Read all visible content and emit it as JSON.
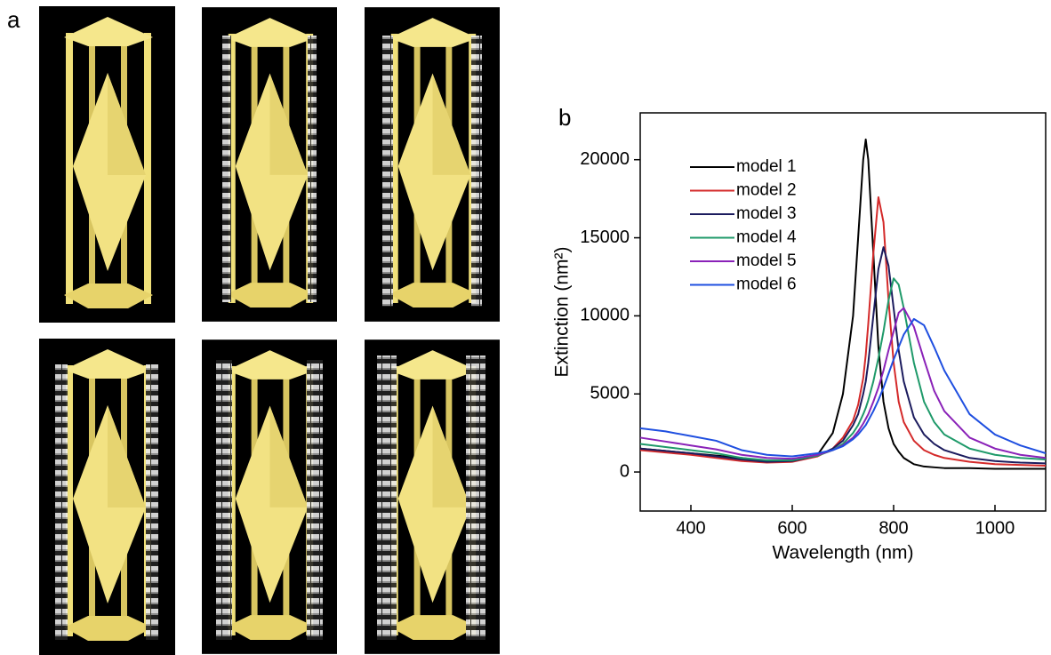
{
  "panel_a": {
    "label": "a"
  },
  "chart_data": {
    "type": "line",
    "panel_label": "b",
    "x_label": "Wavelength (nm)",
    "y_label": "Extinction (nm²)",
    "xlim": [
      300,
      1100
    ],
    "ylim": [
      -2500,
      23000
    ],
    "xticks": [
      400,
      600,
      800,
      1000
    ],
    "yticks": [
      0,
      5000,
      10000,
      15000,
      20000
    ],
    "legend": "upper left",
    "grid": false,
    "x": [
      300,
      350,
      400,
      450,
      500,
      550,
      600,
      650,
      680,
      700,
      720,
      730,
      740,
      745,
      750,
      760,
      770,
      780,
      790,
      800,
      810,
      820,
      840,
      860,
      880,
      900,
      950,
      1000,
      1050,
      1100
    ],
    "series": [
      {
        "name": "model 1",
        "color": "#000000",
        "values": [
          1500,
          1350,
          1200,
          1050,
          900,
          700,
          700,
          1100,
          2500,
          5000,
          10000,
          15000,
          20000,
          21300,
          20000,
          14000,
          8000,
          4500,
          2800,
          1800,
          1300,
          900,
          500,
          350,
          300,
          250,
          250,
          200,
          200,
          200
        ]
      },
      {
        "name": "model 2",
        "color": "#d42a2a",
        "values": [
          1400,
          1250,
          1100,
          900,
          700,
          600,
          650,
          1000,
          1500,
          2200,
          3300,
          4300,
          6000,
          7500,
          9500,
          14000,
          17600,
          16000,
          11000,
          7000,
          4500,
          3200,
          2000,
          1400,
          1100,
          900,
          650,
          500,
          450,
          400
        ]
      },
      {
        "name": "model 3",
        "color": "#1c1c5e",
        "values": [
          1500,
          1350,
          1200,
          1000,
          800,
          650,
          700,
          1050,
          1500,
          2000,
          3000,
          3700,
          5000,
          5800,
          7000,
          10000,
          13000,
          14400,
          13200,
          10500,
          7800,
          5800,
          3500,
          2400,
          1800,
          1400,
          900,
          700,
          600,
          550
        ]
      },
      {
        "name": "model 4",
        "color": "#1f9a6a",
        "values": [
          1800,
          1600,
          1400,
          1200,
          900,
          750,
          750,
          1050,
          1400,
          1800,
          2500,
          3000,
          3700,
          4100,
          4600,
          5800,
          7300,
          9000,
          11000,
          12400,
          12000,
          10500,
          7000,
          4500,
          3200,
          2400,
          1500,
          1100,
          900,
          800
        ]
      },
      {
        "name": "model 5",
        "color": "#8a22b8",
        "values": [
          2200,
          1950,
          1700,
          1450,
          1100,
          900,
          850,
          1100,
          1400,
          1700,
          2200,
          2600,
          3100,
          3400,
          3700,
          4500,
          5400,
          6500,
          7800,
          9000,
          10200,
          10500,
          9300,
          7200,
          5200,
          3900,
          2200,
          1500,
          1100,
          900
        ]
      },
      {
        "name": "model 6",
        "color": "#1f4fe0",
        "values": [
          2800,
          2600,
          2300,
          2000,
          1400,
          1100,
          1000,
          1200,
          1400,
          1650,
          2100,
          2400,
          2800,
          3000,
          3300,
          3900,
          4600,
          5400,
          6300,
          7200,
          8000,
          8800,
          9800,
          9400,
          8000,
          6500,
          3700,
          2400,
          1700,
          1200
        ]
      }
    ]
  }
}
